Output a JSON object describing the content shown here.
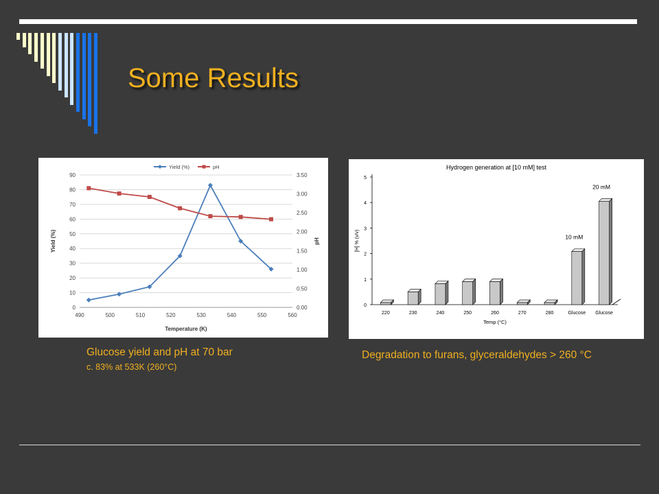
{
  "slide": {
    "title": "Some Results",
    "bar_colors": [
      "#ffffcc",
      "#ffffcc",
      "#ffffcc",
      "#ffffcc",
      "#ffffcc",
      "#ffffcc",
      "#ffffcc",
      "#cce6ff",
      "#cce6ff",
      "#cce6ff",
      "#1a73e8",
      "#1a73e8",
      "#1a73e8",
      "#1a73e8"
    ],
    "title_color": "#f0b020",
    "background": "#3a3a3a"
  },
  "captions": {
    "left_main": "Glucose yield and pH at 70 bar",
    "left_sub": "c. 83% at 533K (260°C)",
    "right_main": "Degradation to furans, glyceraldehydes > 260 °C"
  },
  "chart_data": [
    {
      "type": "line",
      "title": "",
      "xlabel": "Temperature (K)",
      "ylabel": "Yield (%)",
      "y2label": "pH",
      "xlim": [
        490,
        560
      ],
      "x_ticks": [
        490,
        500,
        510,
        520,
        530,
        540,
        550,
        560
      ],
      "ylim": [
        0,
        90
      ],
      "y_ticks": [
        0,
        10,
        20,
        30,
        40,
        50,
        60,
        70,
        80,
        90
      ],
      "y2lim": [
        0,
        3.5
      ],
      "y2_ticks": [
        "0.00",
        "0.50",
        "1.00",
        "1.50",
        "2.00",
        "2.50",
        "3.00",
        "3.50"
      ],
      "grid": "horizontal",
      "legend": "top",
      "x": [
        493,
        503,
        513,
        523,
        533,
        543,
        553
      ],
      "series": [
        {
          "name": "Yield (%)",
          "axis": "left",
          "color": "#4a7ebb",
          "marker": "diamond",
          "values": [
            5,
            9,
            14,
            35,
            83,
            45,
            26
          ]
        },
        {
          "name": "pH",
          "axis": "right",
          "color": "#be4b48",
          "marker": "square",
          "values": [
            3.15,
            3.01,
            2.92,
            2.62,
            2.41,
            2.39,
            2.33
          ]
        }
      ]
    },
    {
      "type": "bar",
      "title": "Hydrogen generation at [10 mM] test",
      "xlabel": "Temp (°C)",
      "ylabel": "[H] % (v/v)",
      "ylim": [
        0,
        5
      ],
      "y_ticks": [
        0,
        1,
        2,
        3,
        4,
        5
      ],
      "categories": [
        "220",
        "230",
        "240",
        "250",
        "260",
        "270",
        "280",
        "Glucose",
        "Glucose"
      ],
      "values": [
        0.08,
        0.5,
        0.82,
        0.9,
        0.9,
        0.08,
        0.08,
        2.08,
        4.05
      ],
      "annotations": [
        {
          "text": "10 mM",
          "category_index": 7
        },
        {
          "text": "20 mM",
          "category_index": 8
        }
      ],
      "bar_color": "#c8c8c8"
    }
  ]
}
